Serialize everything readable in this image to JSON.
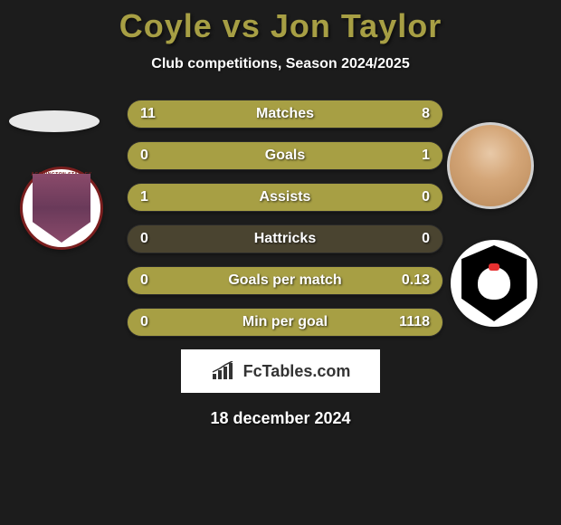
{
  "header": {
    "title": "Coyle vs Jon Taylor",
    "subtitle": "Club competitions, Season 2024/2025"
  },
  "colors": {
    "accent": "#a79f44",
    "bar_bg": "#4a4430",
    "page_bg": "#1c1c1c",
    "text": "#ffffff"
  },
  "stats": [
    {
      "label": "Matches",
      "left_value": "11",
      "right_value": "8",
      "left_fill_pct": 58,
      "right_fill_pct": 42
    },
    {
      "label": "Goals",
      "left_value": "0",
      "right_value": "1",
      "left_fill_pct": 0,
      "right_fill_pct": 100
    },
    {
      "label": "Assists",
      "left_value": "1",
      "right_value": "0",
      "left_fill_pct": 100,
      "right_fill_pct": 0
    },
    {
      "label": "Hattricks",
      "left_value": "0",
      "right_value": "0",
      "left_fill_pct": 0,
      "right_fill_pct": 0
    },
    {
      "label": "Goals per match",
      "left_value": "0",
      "right_value": "0.13",
      "left_fill_pct": 0,
      "right_fill_pct": 100
    },
    {
      "label": "Min per goal",
      "left_value": "0",
      "right_value": "1118",
      "left_fill_pct": 0,
      "right_fill_pct": 100
    }
  ],
  "player_left": {
    "name": "Coyle",
    "crest_label": "ACCRINGTON STANLEY"
  },
  "player_right": {
    "name": "Jon Taylor",
    "crest_label": "Salford"
  },
  "branding": {
    "text": "FcTables.com"
  },
  "date": "18 december 2024"
}
